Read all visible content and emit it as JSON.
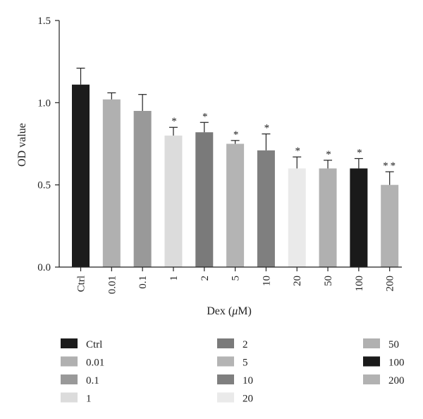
{
  "chart_data": {
    "type": "bar",
    "title": "",
    "xlabel_prefix": "Dex (",
    "xlabel_unit_symbol": "μ",
    "xlabel_suffix": "M)",
    "ylabel": "OD value",
    "ylim": [
      0,
      1.5
    ],
    "yticks": [
      "0.0",
      "0.5",
      "1.0",
      "1.5"
    ],
    "categories": [
      "Ctrl",
      "0.01",
      "0.1",
      "1",
      "2",
      "5",
      "10",
      "20",
      "50",
      "100",
      "200"
    ],
    "values": [
      1.11,
      1.02,
      0.95,
      0.8,
      0.82,
      0.75,
      0.71,
      0.6,
      0.6,
      0.6,
      0.5
    ],
    "errors": [
      0.1,
      0.04,
      0.1,
      0.05,
      0.06,
      0.02,
      0.1,
      0.07,
      0.05,
      0.06,
      0.08
    ],
    "significance": [
      "",
      "",
      "",
      "*",
      "*",
      "*",
      "*",
      "*",
      "*",
      "*",
      "**"
    ],
    "colors": [
      "#1c1c1c",
      "#b0b0b0",
      "#999999",
      "#dcdcdc",
      "#7a7a7a",
      "#b4b4b4",
      "#7f7f7f",
      "#eaeaea",
      "#b0b0b0",
      "#1a1a1a",
      "#b2b2b2"
    ],
    "legend": {
      "placement": "bottom",
      "entries": [
        "Ctrl",
        "0.01",
        "0.1",
        "1",
        "2",
        "5",
        "10",
        "20",
        "50",
        "100",
        "200"
      ]
    },
    "grid": false
  }
}
